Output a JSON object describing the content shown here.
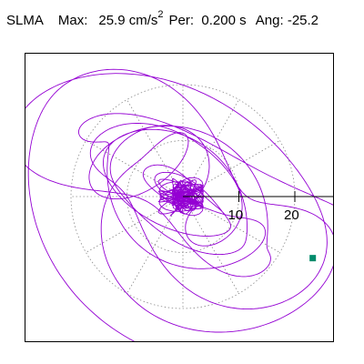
{
  "header": {
    "station": "SLMA",
    "max_label": "Max:",
    "max_value": "25.9",
    "max_unit": "cm/s",
    "max_exp": "2",
    "per_label": "Per:",
    "per_value": "0.200 s",
    "ang_label": "Ang:",
    "ang_value": "-25.2"
  },
  "chart_data": {
    "type": "polar_particle_motion",
    "rings": [
      10,
      20
    ],
    "tick_labels": [
      "10",
      "20"
    ],
    "angle_deg": -25.2,
    "max_amplitude": 25.9,
    "end_point": {
      "x": 23.2,
      "y": -11.0
    },
    "colors": {
      "trace": "#9400d3",
      "grid": "#8a8a8a",
      "axis": "#000000",
      "marker": "#008b6b"
    }
  }
}
